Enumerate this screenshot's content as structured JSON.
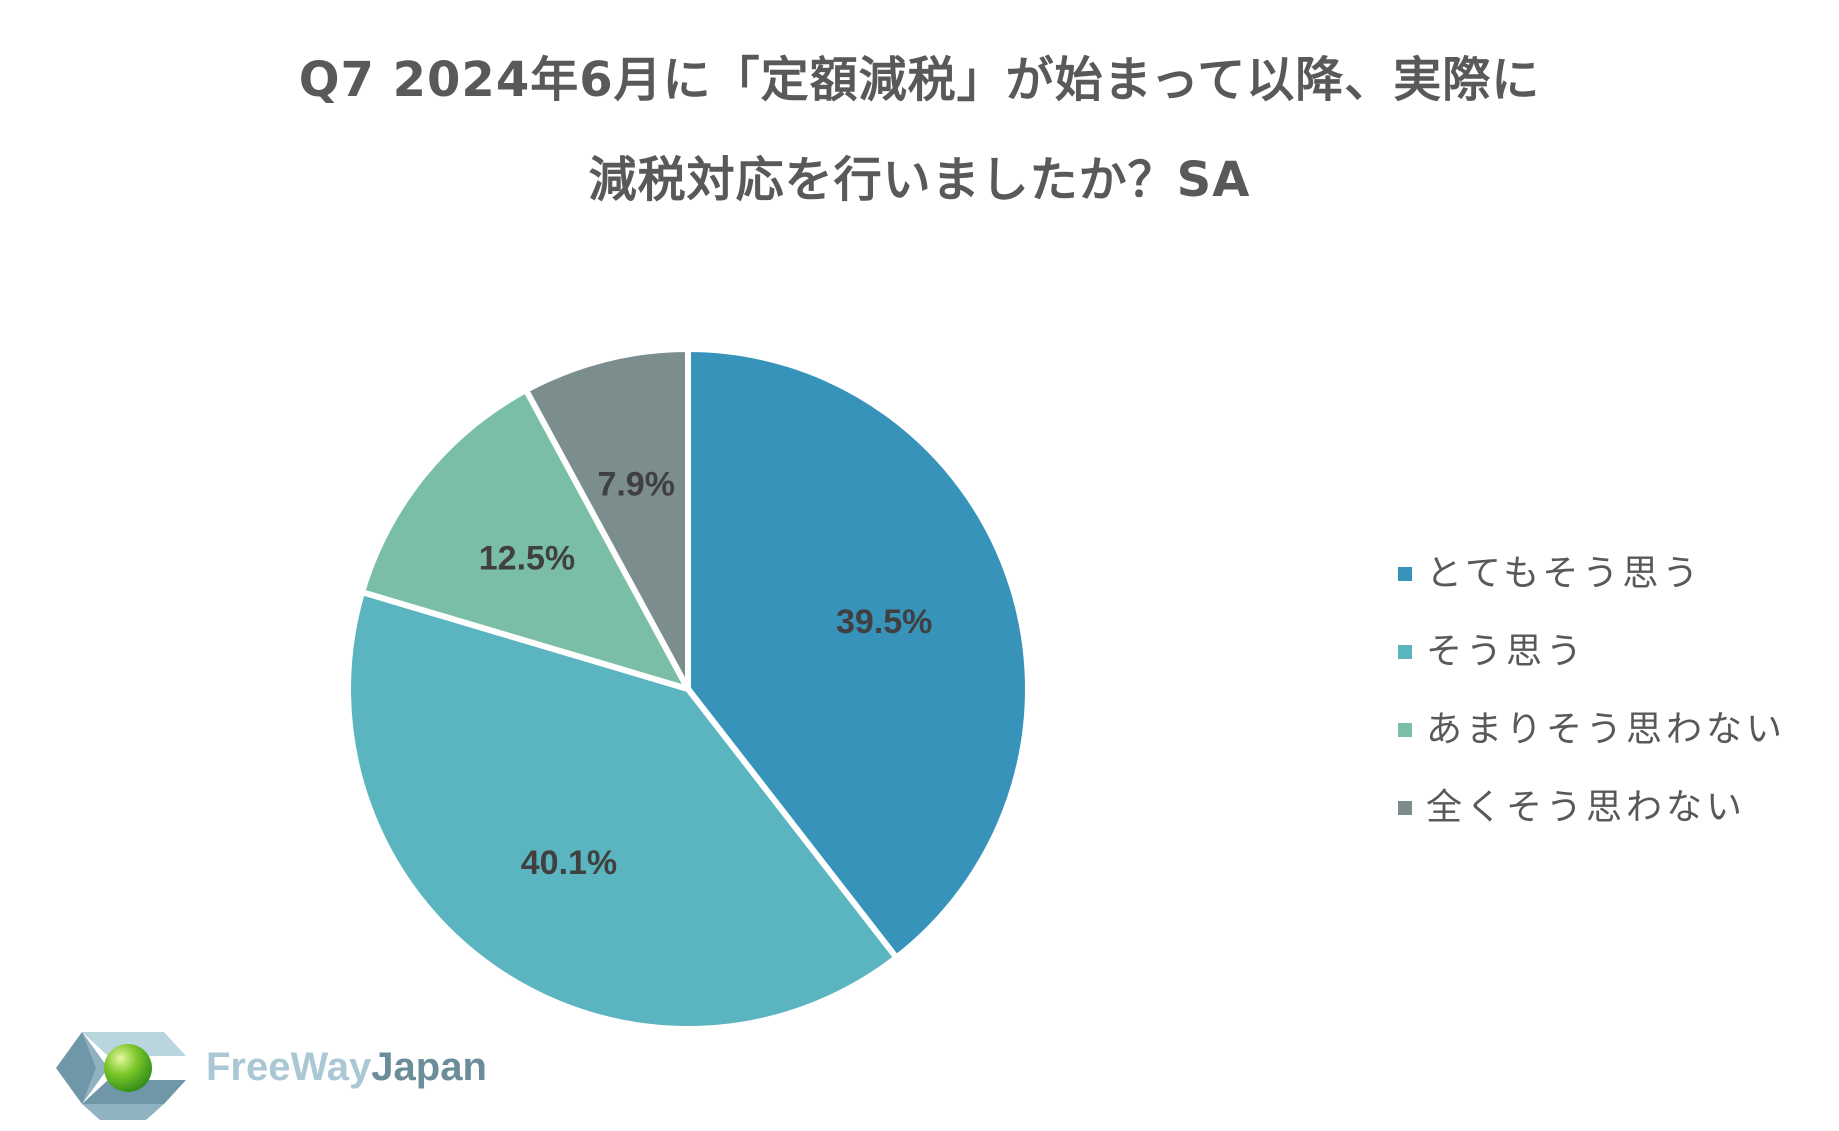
{
  "title": {
    "line1": "Q7 2024年6月に「定額減税」が始まって以降、実際に",
    "line2": "減税対応を行いましたか？SA"
  },
  "chart_data": {
    "type": "pie",
    "title": "Q7 2024年6月に「定額減税」が始まって以降、実際に減税対応を行いましたか？SA",
    "categories": [
      "とてもそう思う",
      "そう思う",
      "あまりそう思わない",
      "全くそう思わない"
    ],
    "values": [
      39.5,
      40.1,
      12.5,
      7.9
    ],
    "labels": [
      "39.5%",
      "40.1%",
      "12.5%",
      "7.9%"
    ],
    "colors": [
      "#3793ba",
      "#5bb5c0",
      "#7bbea6",
      "#7c8d8e"
    ],
    "start_angle": "12 o'clock",
    "direction": "clockwise",
    "legend_position": "right"
  },
  "legend": {
    "items": [
      {
        "label": "とてもそう思う",
        "color": "#3793ba"
      },
      {
        "label": "そう思う",
        "color": "#5bb5c0"
      },
      {
        "label": "あまりそう思わない",
        "color": "#7bbea6"
      },
      {
        "label": "全くそう思わない",
        "color": "#7c8d8e"
      }
    ]
  },
  "logo": {
    "text_part1": "FreeWay",
    "text_part2": "Japan",
    "text_part1_color": "#a9c8d4",
    "text_part2_color": "#6b8d99"
  }
}
